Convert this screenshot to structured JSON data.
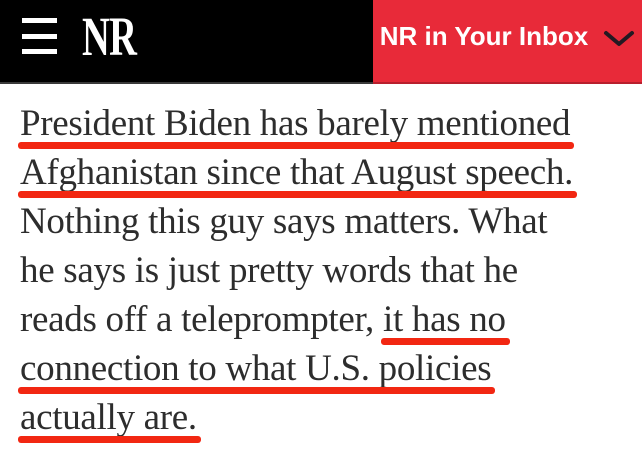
{
  "colors": {
    "header_bg": "#000000",
    "header_border": "#3a3a3a",
    "button_bg": "#e82a39",
    "button_border": "#b81f2d",
    "button_text": "#ffffff",
    "underline": "#f22712",
    "body_text": "#2d2d2d",
    "logo_text": "#ffffff",
    "chevron": "#241922",
    "page_bg": "#ffffff"
  },
  "header": {
    "logo_text": "NR",
    "menu_icon": "hamburger-icon",
    "inbox_button": {
      "label": "NR in Your Inbox",
      "icon": "chevron-down-icon"
    }
  },
  "article": {
    "full_text": "President Biden has barely mentioned Afghanistan since that August speech. Nothing this guy says matters. What he says is just pretty words that he reads off a teleprompter, it has no connection to what U.S. policies actually are.",
    "underlined_phrases": [
      "President Biden has barely mentioned Afghanistan since that August speech.",
      "it has no connection to what U.S. policies actually are."
    ],
    "lines": [
      {
        "segments": [
          {
            "text": "President Biden has barely mentioned",
            "underlined": true
          }
        ]
      },
      {
        "segments": [
          {
            "text": "Afghanistan since that August speech.",
            "underlined": true
          }
        ]
      },
      {
        "segments": [
          {
            "text": "Nothing this guy says matters. What",
            "underlined": false
          }
        ]
      },
      {
        "segments": [
          {
            "text": "he says is just pretty words that he",
            "underlined": false
          }
        ]
      },
      {
        "segments": [
          {
            "text": "reads off a teleprompter, ",
            "underlined": false
          },
          {
            "text": "it has no",
            "underlined": true
          }
        ]
      },
      {
        "segments": [
          {
            "text": "connection to what U.S. policies",
            "underlined": true
          }
        ]
      },
      {
        "segments": [
          {
            "text": "actually are.",
            "underlined": true
          }
        ]
      }
    ]
  }
}
